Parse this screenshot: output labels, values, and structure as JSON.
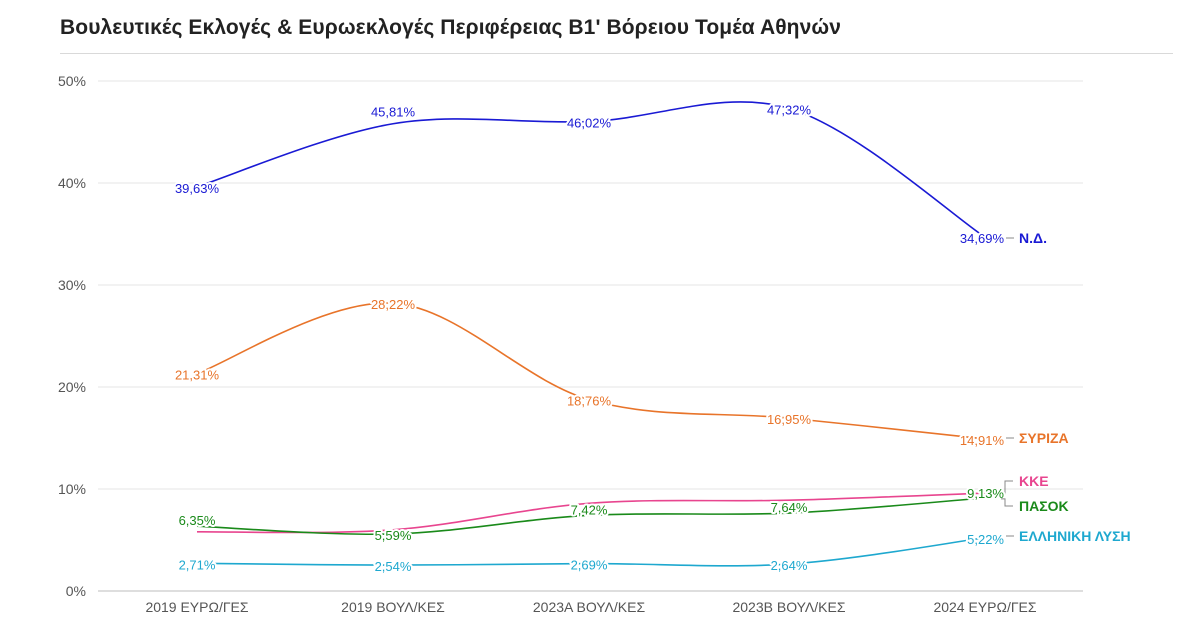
{
  "title": "Βουλευτικές Εκλογές & Ευρωεκλογές Περιφέρειας Β1' Βόρειου Τομέα Αθηνών",
  "chart_data": {
    "type": "line",
    "title": "Βουλευτικές Εκλογές & Ευρωεκλογές Περιφέρειας Β1' Βόρειου Τομέα Αθηνών",
    "categories": [
      "2019 ΕΥΡΩ/ΓΕΣ",
      "2019 ΒΟΥΛ/ΚΕΣ",
      "2023Α ΒΟΥΛ/ΚΕΣ",
      "2023Β ΒΟΥΛ/ΚΕΣ",
      "2024 ΕΥΡΩ/ΓΕΣ"
    ],
    "ylim": [
      0,
      50
    ],
    "yticks": [
      0,
      10,
      20,
      30,
      40,
      50
    ],
    "ytick_labels": [
      "0%",
      "10%",
      "20%",
      "30%",
      "40%",
      "50%"
    ],
    "grid": true,
    "legend": "end-of-line labels (right)",
    "series": [
      {
        "name": "Ν.Δ.",
        "color": "#1a1ad4",
        "values": [
          39.63,
          45.81,
          46.02,
          47.32,
          34.69
        ],
        "labels": [
          "39,63%",
          "45,81%",
          "46,02%",
          "47,32%",
          "34,69%"
        ]
      },
      {
        "name": "ΣΥΡΙΖΑ",
        "color": "#e8742a",
        "values": [
          21.31,
          28.22,
          18.76,
          16.95,
          14.91
        ],
        "labels": [
          "21,31%",
          "28,22%",
          "18,76%",
          "16,95%",
          "14,91%"
        ]
      },
      {
        "name": "ΚΚΕ",
        "color": "#e8458f",
        "values": [
          5.8,
          6.0,
          8.6,
          8.9,
          9.6
        ],
        "labels": []
      },
      {
        "name": "ΠΑΣΟΚ",
        "color": "#1a8a1a",
        "values": [
          6.35,
          5.59,
          7.42,
          7.64,
          9.13
        ],
        "labels": [
          "6,35%",
          "5,59%",
          "7,42%",
          "7,64%",
          "9,13%"
        ]
      },
      {
        "name": "ΕΛΛΗΝΙΚΗ ΛΥΣΗ",
        "color": "#1ea8cf",
        "values": [
          2.71,
          2.54,
          2.69,
          2.64,
          5.22
        ],
        "labels": [
          "2,71%",
          "2,54%",
          "2,69%",
          "2,64%",
          "5,22%"
        ]
      }
    ]
  }
}
